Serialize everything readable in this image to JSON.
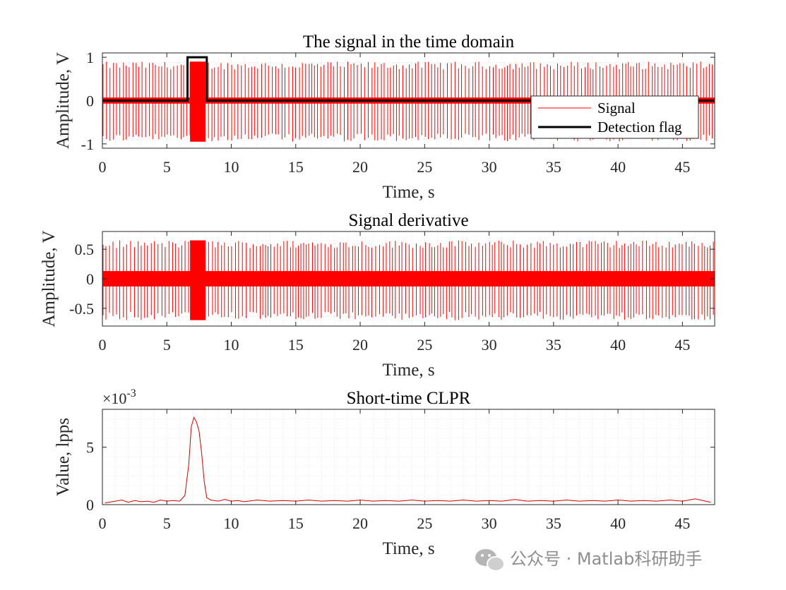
{
  "chart_data": [
    {
      "type": "line",
      "title": "The signal in the time domain",
      "xlabel": "Time, s",
      "ylabel": "Amplitude, V",
      "xlim": [
        0,
        47.5
      ],
      "ylim": [
        -1.1,
        1.1
      ],
      "xticks": [
        "0",
        "5",
        "10",
        "15",
        "20",
        "25",
        "30",
        "35",
        "40",
        "45"
      ],
      "yticks": [
        "-1",
        "0",
        "1"
      ],
      "grid": true,
      "legend": {
        "placement": "right",
        "entries": [
          "Signal",
          "Detection flag"
        ]
      },
      "series": [
        {
          "name": "Signal",
          "color": "#ff0000",
          "description_values": {
            "baseline_band": [
              -0.07,
              0.07
            ],
            "spike_amplitude": [
              -0.95,
              0.9
            ],
            "burst_range_s": [
              6.8,
              8.0
            ]
          }
        },
        {
          "name": "Detection flag",
          "color": "#000000",
          "x": [
            0,
            6.6,
            6.6,
            8.1,
            8.1,
            47.5
          ],
          "y": [
            0,
            0,
            1,
            1,
            0,
            0
          ]
        }
      ]
    },
    {
      "type": "line",
      "title": "Signal derivative",
      "xlabel": "Time, s",
      "ylabel": "Amplitude, V",
      "xlim": [
        0,
        47.5
      ],
      "ylim": [
        -0.8,
        0.8
      ],
      "xticks": [
        "0",
        "5",
        "10",
        "15",
        "20",
        "25",
        "30",
        "35",
        "40",
        "45"
      ],
      "yticks": [
        "-0.5",
        "0",
        "0.5"
      ],
      "grid": true,
      "series": [
        {
          "color": "#ff0000",
          "description_values": {
            "baseline_band": [
              -0.13,
              0.13
            ],
            "spike_amplitude": [
              -0.7,
              0.65
            ],
            "burst_range_s": [
              6.8,
              8.0
            ]
          }
        }
      ]
    },
    {
      "type": "line",
      "title": "Short-time CLPR",
      "xlabel": "Time, s",
      "ylabel": "Value, lpps",
      "xlim": [
        0,
        47.5
      ],
      "ylim": [
        0,
        8.3
      ],
      "y_multiplier": "×10",
      "y_multiplier_exp": "-3",
      "xticks": [
        "0",
        "5",
        "10",
        "15",
        "20",
        "25",
        "30",
        "35",
        "40",
        "45"
      ],
      "yticks": [
        "0",
        "5"
      ],
      "grid": true,
      "series": [
        {
          "color": "#cc0000",
          "x": [
            0.2,
            1.0,
            1.5,
            2.0,
            2.5,
            3.0,
            3.5,
            4.0,
            4.5,
            5.0,
            5.5,
            6.0,
            6.4,
            6.7,
            6.9,
            7.1,
            7.3,
            7.5,
            7.7,
            7.9,
            8.1,
            8.4,
            9.0,
            9.5,
            10.0,
            10.5,
            11.0,
            12.0,
            13.0,
            14.0,
            15.0,
            16.0,
            17.0,
            18.0,
            19.0,
            20.0,
            21.0,
            22.0,
            23.0,
            24.0,
            25.0,
            26.0,
            27.0,
            28.0,
            29.0,
            30.0,
            31.0,
            32.0,
            33.0,
            34.0,
            35.0,
            36.0,
            37.0,
            38.0,
            39.0,
            40.0,
            41.0,
            42.0,
            43.0,
            44.0,
            45.0,
            46.0,
            47.2
          ],
          "y": [
            0.15,
            0.3,
            0.4,
            0.2,
            0.35,
            0.25,
            0.3,
            0.2,
            0.4,
            0.3,
            0.35,
            0.3,
            0.8,
            3.5,
            6.8,
            7.6,
            7.2,
            6.4,
            4.5,
            2.0,
            0.6,
            0.4,
            0.3,
            0.45,
            0.3,
            0.35,
            0.25,
            0.4,
            0.3,
            0.35,
            0.3,
            0.4,
            0.3,
            0.35,
            0.3,
            0.4,
            0.3,
            0.35,
            0.3,
            0.4,
            0.3,
            0.35,
            0.3,
            0.4,
            0.3,
            0.35,
            0.3,
            0.45,
            0.3,
            0.35,
            0.3,
            0.4,
            0.3,
            0.35,
            0.3,
            0.4,
            0.3,
            0.35,
            0.3,
            0.4,
            0.3,
            0.5,
            0.2
          ]
        }
      ]
    }
  ],
  "watermark": {
    "icon": "wechat-icon",
    "text": "公众号 · Matlab科研助手"
  }
}
